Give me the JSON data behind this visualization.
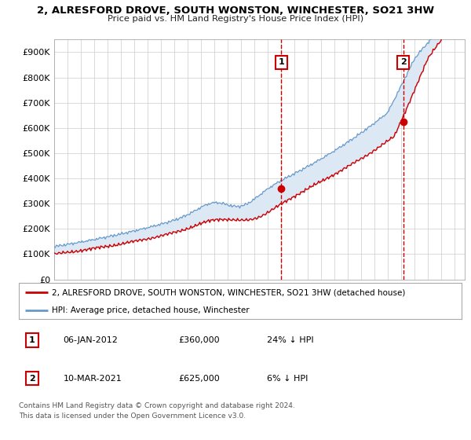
{
  "title_line1": "2, ALRESFORD DROVE, SOUTH WONSTON, WINCHESTER, SO21 3HW",
  "title_line2": "Price paid vs. HM Land Registry's House Price Index (HPI)",
  "ylabel_ticks": [
    "£0",
    "£100K",
    "£200K",
    "£300K",
    "£400K",
    "£500K",
    "£600K",
    "£700K",
    "£800K",
    "£900K"
  ],
  "ylabel_values": [
    0,
    100000,
    200000,
    300000,
    400000,
    500000,
    600000,
    700000,
    800000,
    900000
  ],
  "ylim": [
    0,
    950000
  ],
  "xlim_start": 1995.0,
  "xlim_end": 2025.8,
  "sale1_date": 2012.04,
  "sale1_price": 360000,
  "sale1_label": "1",
  "sale2_date": 2021.19,
  "sale2_price": 625000,
  "sale2_label": "2",
  "hpi_color": "#6699cc",
  "hpi_fill_color": "#dce9f5",
  "property_color": "#cc0000",
  "legend_property": "2, ALRESFORD DROVE, SOUTH WONSTON, WINCHESTER, SO21 3HW (detached house)",
  "legend_hpi": "HPI: Average price, detached house, Winchester",
  "table_row1": [
    "1",
    "06-JAN-2012",
    "£360,000",
    "24% ↓ HPI"
  ],
  "table_row2": [
    "2",
    "10-MAR-2021",
    "£625,000",
    "6% ↓ HPI"
  ],
  "footer": "Contains HM Land Registry data © Crown copyright and database right 2024.\nThis data is licensed under the Open Government Licence v3.0.",
  "bg_color": "#ffffff",
  "grid_color": "#cccccc"
}
